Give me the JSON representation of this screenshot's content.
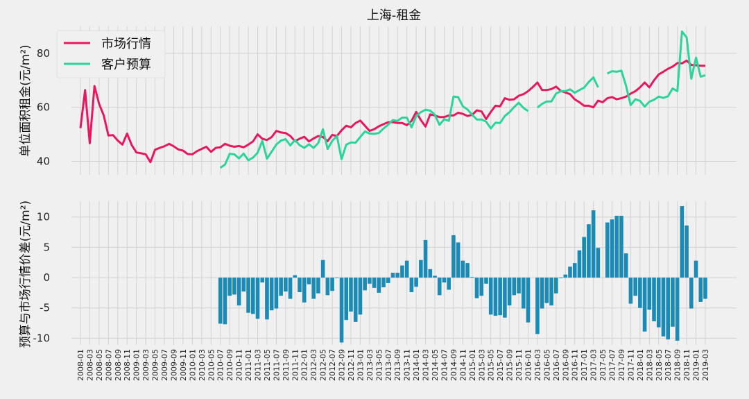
{
  "chart_data": [
    {
      "type": "line",
      "title": "上海-租金",
      "xlabel": "",
      "ylabel": "单位面积租金(元/m²)",
      "ylim": [
        35,
        90
      ],
      "yticks": [
        40,
        60,
        80
      ],
      "grid": true,
      "legend": {
        "placement": "top-left",
        "entries": [
          "市场行情",
          "客户预算"
        ]
      },
      "colors": {
        "市场行情": "#e8175d",
        "客户预算": "#2ad49c"
      },
      "series": [
        {
          "name": "市场行情",
          "values": [
            52.3,
            66.4,
            46.7,
            67.9,
            61.3,
            57.0,
            49.6,
            49.7,
            47.7,
            46.2,
            50.3,
            46.0,
            43.3,
            43.0,
            42.6,
            39.7,
            44.3,
            45.0,
            45.6,
            46.5,
            45.6,
            44.4,
            44.0,
            42.7,
            42.6,
            43.8,
            44.6,
            45.4,
            43.5,
            45.0,
            45.2,
            46.5,
            45.8,
            45.4,
            45.7,
            45.2,
            46.2,
            47.4,
            50.0,
            48.4,
            47.9,
            49.0,
            51.3,
            50.7,
            50.5,
            49.4,
            47.5,
            48.4,
            49.1,
            47.4,
            48.5,
            49.4,
            49.0,
            47.5,
            49.8,
            49.4,
            51.5,
            53.2,
            52.6,
            54.2,
            55.1,
            53.2,
            51.3,
            51.9,
            53.0,
            53.8,
            54.5,
            54.5,
            54.2,
            54.2,
            53.4,
            55.0,
            58.3,
            55.3,
            52.9,
            57.4,
            57.0,
            56.4,
            56.4,
            57.0,
            57.0,
            58.0,
            57.6,
            56.8,
            57.2,
            58.9,
            58.5,
            55.7,
            58.3,
            60.6,
            60.4,
            63.4,
            62.8,
            63.0,
            64.3,
            64.9,
            66.0,
            67.5,
            69.2,
            66.4,
            66.4,
            66.8,
            67.7,
            66.1,
            65.5,
            64.9,
            63.0,
            61.9,
            60.6,
            60.6,
            60.0,
            62.5,
            61.9,
            63.4,
            63.8,
            63.0,
            63.4,
            64.0,
            65.1,
            66.0,
            67.4,
            69.2,
            67.4,
            70.0,
            72.2,
            73.2,
            74.3,
            75.1,
            76.4,
            76.3,
            77.3,
            75.7,
            75.6,
            75.4,
            75.4
          ]
        },
        {
          "name": "客户预算",
          "values": [
            null,
            null,
            null,
            null,
            null,
            null,
            null,
            null,
            null,
            null,
            null,
            null,
            null,
            null,
            null,
            null,
            null,
            null,
            null,
            null,
            null,
            null,
            null,
            null,
            null,
            null,
            null,
            null,
            null,
            null,
            37.6,
            38.8,
            42.8,
            42.6,
            41.1,
            42.9,
            40.4,
            41.4,
            43.2,
            47.6,
            41.0,
            43.6,
            46.2,
            47.7,
            48.2,
            45.9,
            47.9,
            46.0,
            45.0,
            46.3,
            45.0,
            46.8,
            51.9,
            44.6,
            47.6,
            49.4,
            40.8,
            46.2,
            47.0,
            46.9,
            49.0,
            51.1,
            50.3,
            50.2,
            50.5,
            52.2,
            53.6,
            55.3,
            55.0,
            56.2,
            56.2,
            52.6,
            56.8,
            58.2,
            59.1,
            58.8,
            57.3,
            53.5,
            55.6,
            55.0,
            64.0,
            63.8,
            60.4,
            59.2,
            57.3,
            55.5,
            55.5,
            54.7,
            52.2,
            54.3,
            54.2,
            56.8,
            58.2,
            60.1,
            61.7,
            59.8,
            58.6,
            null,
            59.9,
            61.3,
            62.2,
            62.2,
            65.1,
            66.0,
            66.0,
            66.7,
            65.4,
            66.4,
            67.3,
            69.4,
            71.1,
            67.4,
            null,
            72.5,
            73.4,
            73.2,
            73.6,
            68.0,
            60.8,
            63.0,
            62.4,
            60.3,
            62.1,
            62.8,
            64.0,
            63.5,
            64.1,
            67.0,
            66.0,
            88.1,
            85.9,
            70.6,
            78.4,
            71.4,
            71.9
          ]
        }
      ]
    },
    {
      "type": "bar",
      "xlabel": "",
      "ylabel": "预算与市场行情价差(元/m²)",
      "ylim": [
        -11.1,
        12.6
      ],
      "yticks": [
        -10,
        -5,
        0,
        5,
        10
      ],
      "grid": true,
      "colors": {
        "bar": "#1b8bb6"
      },
      "values": [
        null,
        null,
        null,
        null,
        null,
        null,
        null,
        null,
        null,
        null,
        null,
        null,
        null,
        null,
        null,
        null,
        null,
        null,
        null,
        null,
        null,
        null,
        null,
        null,
        null,
        null,
        null,
        null,
        null,
        null,
        -7.6,
        -7.7,
        -3.0,
        -2.8,
        -4.6,
        -2.3,
        -5.8,
        -6.0,
        -6.8,
        -0.8,
        -6.9,
        -5.4,
        -5.1,
        -3.0,
        -2.3,
        -3.5,
        0.4,
        -2.4,
        -4.1,
        -1.1,
        -3.5,
        -2.6,
        2.9,
        -2.9,
        -2.2,
        0.0,
        -10.7,
        -7.0,
        -5.6,
        -7.3,
        -6.1,
        -2.1,
        -1.0,
        -1.7,
        -2.5,
        -1.6,
        -0.9,
        0.8,
        0.8,
        2.0,
        2.8,
        -2.4,
        -1.5,
        2.9,
        6.2,
        1.4,
        0.3,
        -2.9,
        -0.8,
        -2.0,
        7.0,
        5.8,
        2.8,
        2.4,
        0.1,
        -3.4,
        -3.0,
        -1.0,
        -6.1,
        -6.3,
        -6.2,
        -6.6,
        -4.6,
        -2.9,
        -2.6,
        -5.1,
        -7.4,
        null,
        -9.3,
        -5.1,
        -4.2,
        -4.6,
        -2.6,
        -0.1,
        0.5,
        1.8,
        2.4,
        4.5,
        6.7,
        8.8,
        11.1,
        4.9,
        null,
        9.1,
        9.6,
        10.2,
        10.2,
        4.0,
        -4.3,
        -3.0,
        -5.0,
        -8.9,
        -5.3,
        -7.2,
        -8.2,
        -9.7,
        -10.2,
        -8.1,
        -10.4,
        11.8,
        8.6,
        -5.1,
        2.8,
        -4.0,
        -3.5
      ]
    }
  ],
  "x": [
    "2008-01",
    "2008-02",
    "2008-03",
    "2008-04",
    "2008-05",
    "2008-06",
    "2008-07",
    "2008-08",
    "2008-09",
    "2008-10",
    "2008-11",
    "2008-12",
    "2009-01",
    "2009-02",
    "2009-03",
    "2009-04",
    "2009-05",
    "2009-06",
    "2009-07",
    "2009-08",
    "2009-09",
    "2009-10",
    "2009-11",
    "2009-12",
    "2010-01",
    "2010-02",
    "2010-03",
    "2010-04",
    "2010-05",
    "2010-06",
    "2010-07",
    "2010-08",
    "2010-09",
    "2010-10",
    "2010-11",
    "2010-12",
    "2011-01",
    "2011-02",
    "2011-03",
    "2011-04",
    "2011-05",
    "2011-06",
    "2011-07",
    "2011-08",
    "2011-09",
    "2011-10",
    "2011-11",
    "2011-12",
    "2012-01",
    "2012-02",
    "2012-03",
    "2012-04",
    "2012-05",
    "2012-06",
    "2012-07",
    "2012-08",
    "2012-09",
    "2012-10",
    "2012-11",
    "2012-12",
    "2013-01",
    "2013-02",
    "2013-03",
    "2013-04",
    "2013-05",
    "2013-06",
    "2013-07",
    "2013-08",
    "2013-09",
    "2013-10",
    "2013-11",
    "2013-12",
    "2014-01",
    "2014-02",
    "2014-03",
    "2014-04",
    "2014-05",
    "2014-06",
    "2014-07",
    "2014-08",
    "2014-09",
    "2014-10",
    "2014-11",
    "2014-12",
    "2015-01",
    "2015-02",
    "2015-03",
    "2015-04",
    "2015-05",
    "2015-06",
    "2015-07",
    "2015-08",
    "2015-09",
    "2015-10",
    "2015-11",
    "2015-12",
    "2016-01",
    "2016-02",
    "2016-03",
    "2016-04",
    "2016-05",
    "2016-06",
    "2016-07",
    "2016-08",
    "2016-09",
    "2016-10",
    "2016-11",
    "2016-12",
    "2017-01",
    "2017-02",
    "2017-03",
    "2017-04",
    "2017-05",
    "2017-06",
    "2017-07",
    "2017-08",
    "2017-09",
    "2017-10",
    "2017-11",
    "2017-12",
    "2018-01",
    "2018-02",
    "2018-03",
    "2018-04",
    "2018-05",
    "2018-06",
    "2018-07",
    "2018-08",
    "2018-09",
    "2018-10",
    "2018-11",
    "2018-12",
    "2019-01",
    "2019-02",
    "2019-03"
  ],
  "xtick_step_months": 2
}
